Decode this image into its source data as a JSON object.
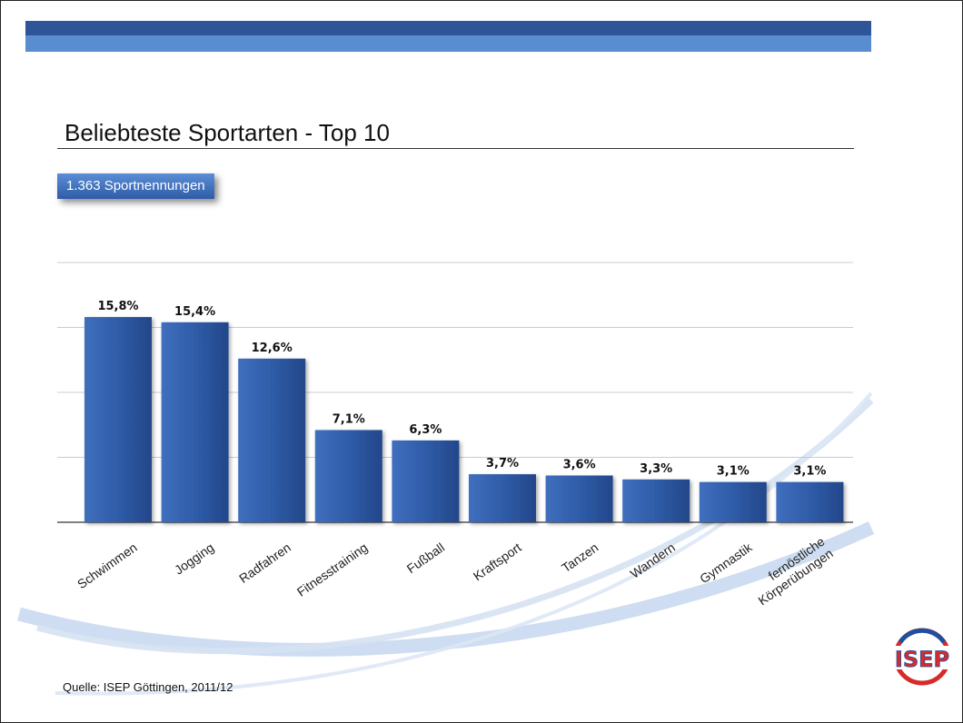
{
  "slide": {
    "title": "Beliebteste Sportarten - Top 10",
    "badge": "1.363 Sportnennungen",
    "source": "Quelle: ISEP Göttingen, 2011/12",
    "logo_text": "ISEP"
  },
  "colors": {
    "header_dark": "#2e5597",
    "header_light": "#5a8dd0",
    "bar": "#2f5ca8",
    "swoosh": "#c9d9ef",
    "logo_red": "#d62b2b",
    "logo_blue": "#1f4fa0"
  },
  "chart_data": {
    "type": "bar",
    "categories": [
      "Schwimmen",
      "Jogging",
      "Radfahren",
      "Fitnesstraining",
      "Fußball",
      "Kraftsport",
      "Tanzen",
      "Wandern",
      "Gymnastik",
      "fernöstliche Körperübungen"
    ],
    "category_lines": [
      [
        "Schwimmen"
      ],
      [
        "Jogging"
      ],
      [
        "Radfahren"
      ],
      [
        "Fitnesstraining"
      ],
      [
        "Fußball"
      ],
      [
        "Kraftsport"
      ],
      [
        "Tanzen"
      ],
      [
        "Wandern"
      ],
      [
        "Gymnastik"
      ],
      [
        "fernöstliche",
        "Körperübungen"
      ]
    ],
    "values": [
      15.8,
      15.4,
      12.6,
      7.1,
      6.3,
      3.7,
      3.6,
      3.3,
      3.1,
      3.1
    ],
    "data_labels": [
      "15,8%",
      "15,4%",
      "12,6%",
      "7,1%",
      "6,3%",
      "3,7%",
      "3,6%",
      "3,3%",
      "3,1%",
      "3,1%"
    ],
    "ylim": [
      0,
      20
    ],
    "grid": true,
    "title": "",
    "xlabel": "",
    "ylabel": ""
  }
}
